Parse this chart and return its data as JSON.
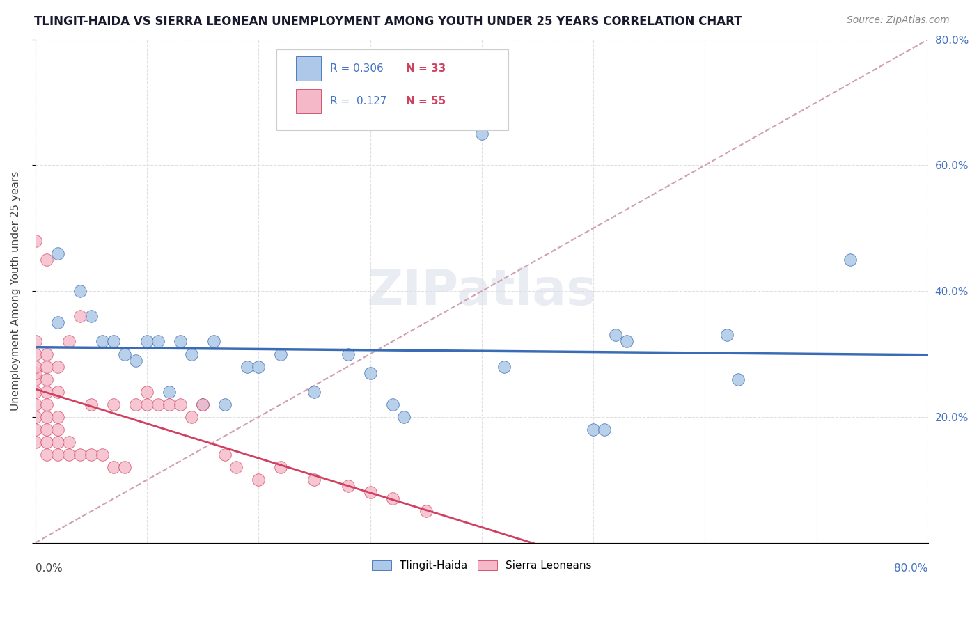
{
  "title": "TLINGIT-HAIDA VS SIERRA LEONEAN UNEMPLOYMENT AMONG YOUTH UNDER 25 YEARS CORRELATION CHART",
  "source": "Source: ZipAtlas.com",
  "legend_label1": "Tlingit-Haida",
  "legend_label2": "Sierra Leoneans",
  "R1": 0.306,
  "N1": 33,
  "R2": 0.127,
  "N2": 55,
  "color1": "#adc8e8",
  "color2": "#f5b8c8",
  "line1_color": "#3a6cb5",
  "line2_color": "#d04060",
  "diag_color": "#d0a0b0",
  "background": "#ffffff",
  "tlingit_x": [
    0.02,
    0.02,
    0.04,
    0.05,
    0.06,
    0.07,
    0.08,
    0.09,
    0.1,
    0.11,
    0.12,
    0.13,
    0.14,
    0.15,
    0.16,
    0.17,
    0.19,
    0.2,
    0.22,
    0.25,
    0.28,
    0.3,
    0.32,
    0.33,
    0.4,
    0.42,
    0.5,
    0.51,
    0.52,
    0.53,
    0.62,
    0.63,
    0.73
  ],
  "tlingit_y": [
    0.35,
    0.46,
    0.4,
    0.36,
    0.32,
    0.32,
    0.3,
    0.29,
    0.32,
    0.32,
    0.24,
    0.32,
    0.3,
    0.22,
    0.32,
    0.22,
    0.28,
    0.28,
    0.3,
    0.24,
    0.3,
    0.27,
    0.22,
    0.2,
    0.65,
    0.28,
    0.18,
    0.18,
    0.33,
    0.32,
    0.33,
    0.26,
    0.45
  ],
  "sierra_x": [
    0.0,
    0.0,
    0.0,
    0.0,
    0.0,
    0.0,
    0.0,
    0.0,
    0.0,
    0.0,
    0.0,
    0.01,
    0.01,
    0.01,
    0.01,
    0.01,
    0.01,
    0.01,
    0.01,
    0.01,
    0.01,
    0.02,
    0.02,
    0.02,
    0.02,
    0.02,
    0.02,
    0.03,
    0.03,
    0.03,
    0.04,
    0.04,
    0.05,
    0.05,
    0.06,
    0.07,
    0.07,
    0.08,
    0.09,
    0.1,
    0.1,
    0.11,
    0.12,
    0.13,
    0.14,
    0.15,
    0.17,
    0.18,
    0.2,
    0.22,
    0.25,
    0.28,
    0.3,
    0.32,
    0.35
  ],
  "sierra_y": [
    0.16,
    0.18,
    0.2,
    0.22,
    0.24,
    0.26,
    0.27,
    0.28,
    0.3,
    0.32,
    0.48,
    0.14,
    0.16,
    0.18,
    0.2,
    0.22,
    0.24,
    0.26,
    0.28,
    0.3,
    0.45,
    0.14,
    0.16,
    0.18,
    0.2,
    0.24,
    0.28,
    0.14,
    0.16,
    0.32,
    0.14,
    0.36,
    0.14,
    0.22,
    0.14,
    0.12,
    0.22,
    0.12,
    0.22,
    0.22,
    0.24,
    0.22,
    0.22,
    0.22,
    0.2,
    0.22,
    0.14,
    0.12,
    0.1,
    0.12,
    0.1,
    0.09,
    0.08,
    0.07,
    0.05
  ],
  "xlim": [
    0.0,
    0.8
  ],
  "ylim": [
    0.0,
    0.8
  ],
  "yticks": [
    0.0,
    0.2,
    0.4,
    0.6,
    0.8
  ],
  "ylabel_right_labels": [
    "",
    "20.0%",
    "40.0%",
    "60.0%",
    "80.0%"
  ],
  "ylabel": "Unemployment Among Youth under 25 years",
  "grid_color": "#e0e0e0",
  "scatter_size": 160
}
